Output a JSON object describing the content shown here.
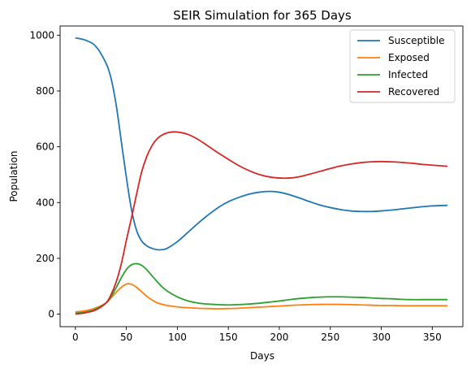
{
  "chart_data": {
    "type": "line",
    "title": "SEIR Simulation for 365 Days",
    "xlabel": "Days",
    "ylabel": "Population",
    "xlim": [
      -15,
      380
    ],
    "ylim": [
      -45,
      1033
    ],
    "xticks": [
      0,
      50,
      100,
      150,
      200,
      250,
      300,
      350
    ],
    "yticks": [
      0,
      200,
      400,
      600,
      800,
      1000
    ],
    "grid": false,
    "legend_position": "top-right",
    "series": [
      {
        "name": "Susceptible",
        "color": "#1f77b4",
        "points": [
          [
            0,
            990
          ],
          [
            10,
            982
          ],
          [
            20,
            960
          ],
          [
            30,
            900
          ],
          [
            35,
            845
          ],
          [
            40,
            750
          ],
          [
            45,
            620
          ],
          [
            50,
            490
          ],
          [
            55,
            375
          ],
          [
            60,
            300
          ],
          [
            65,
            262
          ],
          [
            70,
            245
          ],
          [
            75,
            236
          ],
          [
            80,
            231
          ],
          [
            85,
            231
          ],
          [
            90,
            236
          ],
          [
            100,
            260
          ],
          [
            110,
            292
          ],
          [
            120,
            325
          ],
          [
            130,
            355
          ],
          [
            140,
            382
          ],
          [
            150,
            403
          ],
          [
            160,
            418
          ],
          [
            170,
            430
          ],
          [
            180,
            437
          ],
          [
            190,
            440
          ],
          [
            200,
            437
          ],
          [
            210,
            428
          ],
          [
            220,
            416
          ],
          [
            230,
            403
          ],
          [
            240,
            391
          ],
          [
            250,
            382
          ],
          [
            260,
            375
          ],
          [
            270,
            370
          ],
          [
            280,
            368
          ],
          [
            290,
            368
          ],
          [
            300,
            370
          ],
          [
            310,
            373
          ],
          [
            320,
            377
          ],
          [
            330,
            381
          ],
          [
            340,
            385
          ],
          [
            350,
            388
          ],
          [
            365,
            390
          ]
        ]
      },
      {
        "name": "Exposed",
        "color": "#ff7f0e",
        "points": [
          [
            0,
            8
          ],
          [
            10,
            12
          ],
          [
            20,
            22
          ],
          [
            30,
            40
          ],
          [
            35,
            58
          ],
          [
            40,
            78
          ],
          [
            45,
            96
          ],
          [
            50,
            108
          ],
          [
            55,
            107
          ],
          [
            60,
            96
          ],
          [
            65,
            80
          ],
          [
            70,
            64
          ],
          [
            75,
            51
          ],
          [
            80,
            41
          ],
          [
            90,
            31
          ],
          [
            100,
            26
          ],
          [
            110,
            23
          ],
          [
            120,
            21
          ],
          [
            130,
            20
          ],
          [
            140,
            19
          ],
          [
            150,
            20
          ],
          [
            160,
            21
          ],
          [
            170,
            23
          ],
          [
            180,
            25
          ],
          [
            190,
            27
          ],
          [
            200,
            29
          ],
          [
            210,
            31
          ],
          [
            220,
            33
          ],
          [
            230,
            34
          ],
          [
            240,
            35
          ],
          [
            250,
            35
          ],
          [
            260,
            35
          ],
          [
            270,
            34
          ],
          [
            280,
            33
          ],
          [
            290,
            32
          ],
          [
            300,
            31
          ],
          [
            310,
            31
          ],
          [
            320,
            30
          ],
          [
            330,
            30
          ],
          [
            340,
            30
          ],
          [
            350,
            30
          ],
          [
            365,
            30
          ]
        ]
      },
      {
        "name": "Infected",
        "color": "#2ca02c",
        "points": [
          [
            0,
            3
          ],
          [
            10,
            7
          ],
          [
            20,
            18
          ],
          [
            30,
            40
          ],
          [
            35,
            63
          ],
          [
            40,
            95
          ],
          [
            45,
            130
          ],
          [
            50,
            160
          ],
          [
            55,
            177
          ],
          [
            60,
            181
          ],
          [
            65,
            175
          ],
          [
            70,
            159
          ],
          [
            75,
            138
          ],
          [
            80,
            117
          ],
          [
            85,
            98
          ],
          [
            90,
            83
          ],
          [
            100,
            62
          ],
          [
            110,
            48
          ],
          [
            120,
            40
          ],
          [
            130,
            36
          ],
          [
            140,
            34
          ],
          [
            150,
            33
          ],
          [
            160,
            34
          ],
          [
            170,
            36
          ],
          [
            180,
            39
          ],
          [
            190,
            43
          ],
          [
            200,
            47
          ],
          [
            210,
            52
          ],
          [
            220,
            56
          ],
          [
            230,
            59
          ],
          [
            240,
            61
          ],
          [
            250,
            62
          ],
          [
            260,
            62
          ],
          [
            270,
            61
          ],
          [
            280,
            60
          ],
          [
            290,
            58
          ],
          [
            300,
            56
          ],
          [
            310,
            55
          ],
          [
            320,
            53
          ],
          [
            330,
            52
          ],
          [
            340,
            52
          ],
          [
            350,
            52
          ],
          [
            365,
            52
          ]
        ]
      },
      {
        "name": "Recovered",
        "color": "#d62728",
        "points": [
          [
            0,
            0
          ],
          [
            10,
            5
          ],
          [
            20,
            15
          ],
          [
            30,
            40
          ],
          [
            35,
            70
          ],
          [
            40,
            115
          ],
          [
            45,
            180
          ],
          [
            50,
            265
          ],
          [
            55,
            345
          ],
          [
            60,
            430
          ],
          [
            65,
            510
          ],
          [
            70,
            565
          ],
          [
            75,
            603
          ],
          [
            80,
            628
          ],
          [
            85,
            642
          ],
          [
            90,
            650
          ],
          [
            95,
            653
          ],
          [
            100,
            653
          ],
          [
            110,
            645
          ],
          [
            120,
            627
          ],
          [
            130,
            603
          ],
          [
            140,
            578
          ],
          [
            150,
            555
          ],
          [
            160,
            533
          ],
          [
            170,
            515
          ],
          [
            180,
            501
          ],
          [
            190,
            492
          ],
          [
            200,
            488
          ],
          [
            210,
            488
          ],
          [
            220,
            493
          ],
          [
            230,
            502
          ],
          [
            240,
            512
          ],
          [
            250,
            522
          ],
          [
            260,
            531
          ],
          [
            270,
            538
          ],
          [
            280,
            543
          ],
          [
            290,
            546
          ],
          [
            300,
            547
          ],
          [
            310,
            546
          ],
          [
            320,
            544
          ],
          [
            330,
            541
          ],
          [
            340,
            537
          ],
          [
            350,
            534
          ],
          [
            365,
            530
          ]
        ]
      }
    ]
  }
}
